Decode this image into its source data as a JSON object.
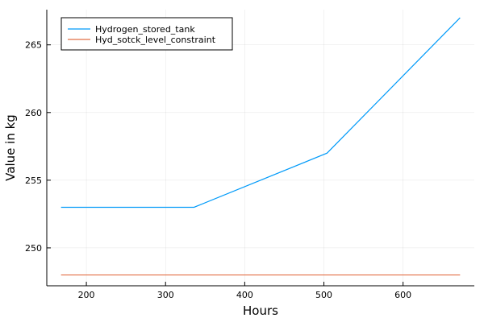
{
  "chart_data": {
    "type": "line",
    "title": "",
    "xlabel": "Hours",
    "ylabel": "Value in kg",
    "xlim": [
      150,
      690
    ],
    "ylim": [
      247.2,
      267.6
    ],
    "xticks": [
      200,
      300,
      400,
      500,
      600
    ],
    "yticks": [
      250,
      255,
      260,
      265
    ],
    "grid": true,
    "legend_position": "top-left",
    "series": [
      {
        "name": "Hydrogen_stored_tank",
        "color": "#009af9",
        "x": [
          168,
          336,
          504,
          672
        ],
        "y": [
          253,
          253,
          257,
          267
        ]
      },
      {
        "name": "Hyd_sotck_level_constraint",
        "color": "#e26f46",
        "x": [
          168,
          336,
          504,
          672
        ],
        "y": [
          248,
          248,
          248,
          248
        ]
      }
    ]
  }
}
